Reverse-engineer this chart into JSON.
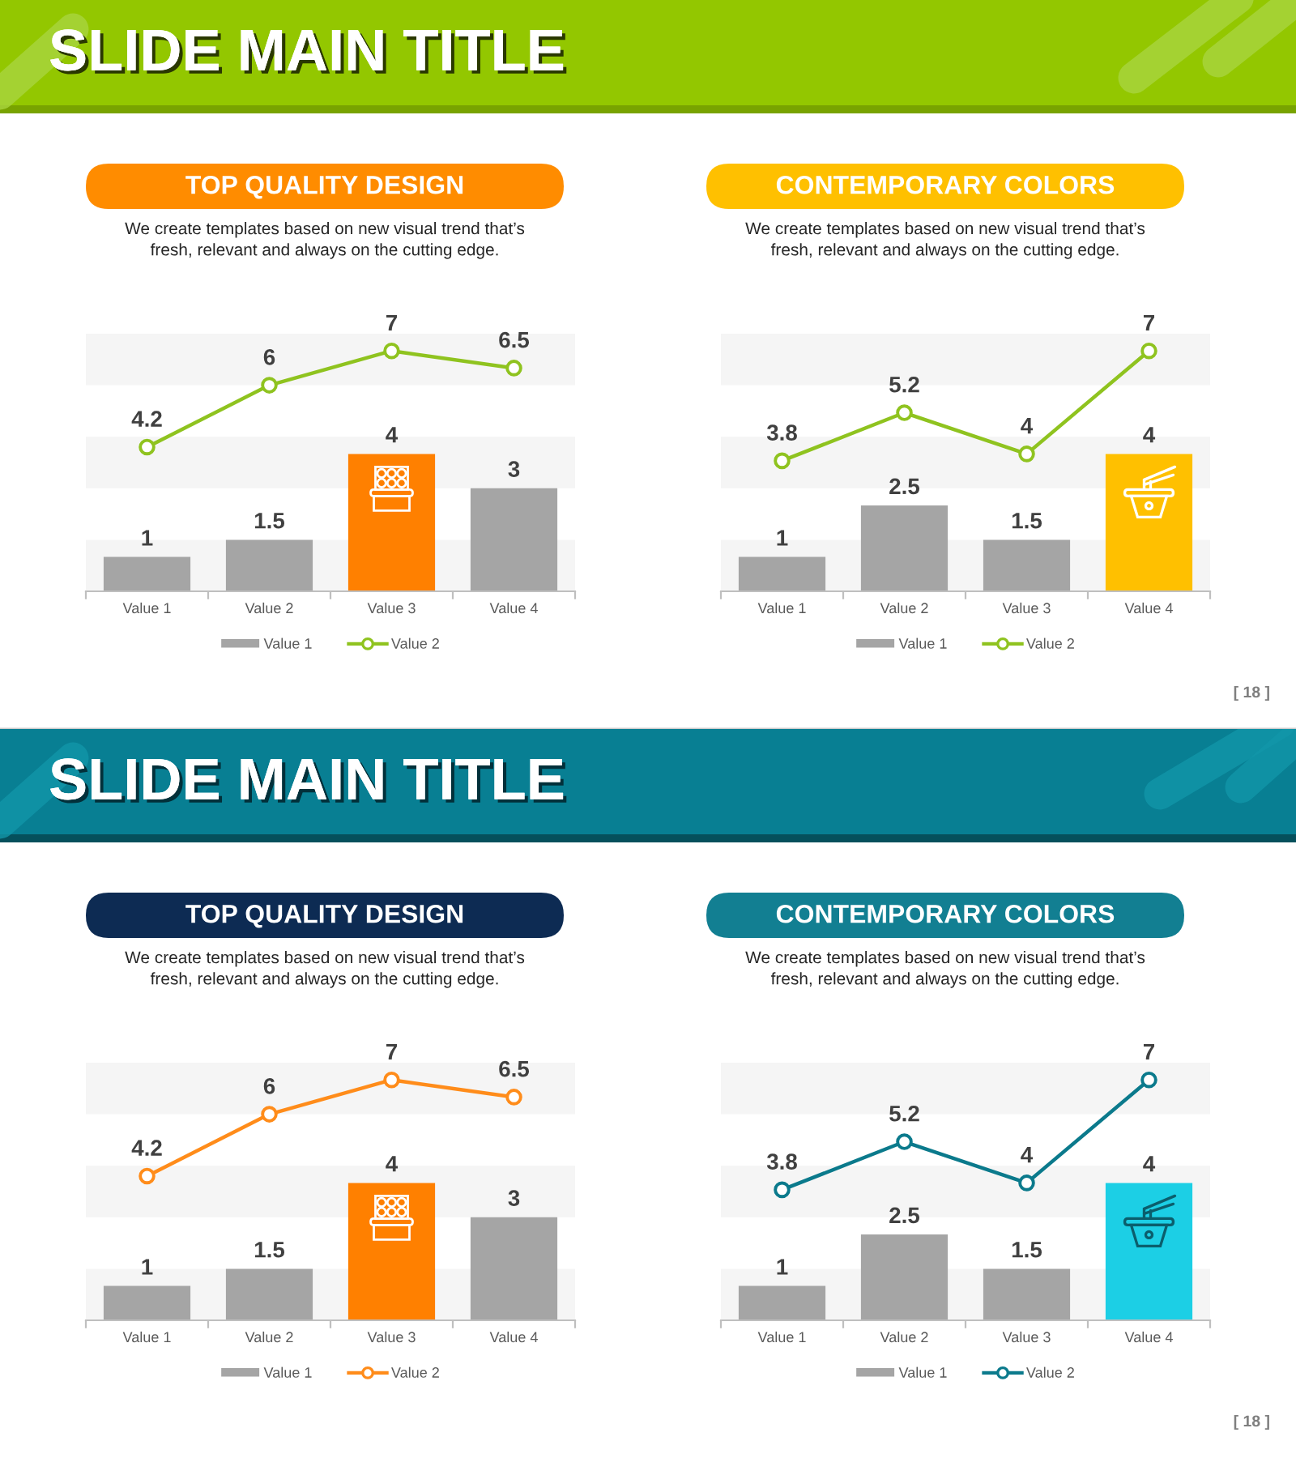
{
  "chart_data": [
    {
      "type": "other",
      "title": "SLIDE MAIN TITLE",
      "annotations": [
        "[ 18 ]"
      ]
    },
    {
      "type": "bar",
      "title": "TOP QUALITY DESIGN",
      "subtitle": "We create templates based on new visual trend that’s\nfresh, relevant and always on the cutting edge.",
      "categories": [
        "Value 1",
        "Value 2",
        "Value 3",
        "Value 4"
      ],
      "series": [
        {
          "name": "Value 1",
          "type": "bar",
          "color": "#a5a5a5",
          "colors": [
            "#a5a5a5",
            "#a5a5a5",
            "#ff8000",
            "#a5a5a5"
          ],
          "values": [
            1,
            1.5,
            4,
            3
          ]
        },
        {
          "name": "Value 2",
          "type": "line",
          "color": "#8fc31f",
          "marker": "circle",
          "values": [
            4.2,
            6,
            7,
            6.5
          ]
        }
      ],
      "ylim": [
        0,
        7.5
      ],
      "tick_labels": "x",
      "bands": [
        {
          "axis": "y",
          "from": 0,
          "to": 1.5,
          "color": "#f5f5f5"
        },
        {
          "axis": "y",
          "from": 3,
          "to": 4.5,
          "color": "#f5f5f5"
        },
        {
          "axis": "y",
          "from": 6,
          "to": 7.5,
          "color": "#f5f5f5"
        }
      ],
      "data_labels": true,
      "legend": "bottom"
    },
    {
      "type": "bar",
      "title": "CONTEMPORARY COLORS",
      "subtitle": "We create templates based on new visual trend that’s\nfresh, relevant and always on the cutting edge.",
      "categories": [
        "Value 1",
        "Value 2",
        "Value 3",
        "Value 4"
      ],
      "series": [
        {
          "name": "Value 1",
          "type": "bar",
          "color": "#a5a5a5",
          "colors": [
            "#a5a5a5",
            "#a5a5a5",
            "#a5a5a5",
            "#ffc000"
          ],
          "values": [
            1,
            2.5,
            1.5,
            4
          ]
        },
        {
          "name": "Value 2",
          "type": "line",
          "color": "#8fc31f",
          "marker": "circle",
          "values": [
            3.8,
            5.2,
            4,
            7
          ]
        }
      ],
      "ylim": [
        0,
        7.5
      ],
      "tick_labels": "x",
      "bands": [
        {
          "axis": "y",
          "from": 0,
          "to": 1.5,
          "color": "#f5f5f5"
        },
        {
          "axis": "y",
          "from": 3,
          "to": 4.5,
          "color": "#f5f5f5"
        },
        {
          "axis": "y",
          "from": 6,
          "to": 7.5,
          "color": "#f5f5f5"
        }
      ],
      "data_labels": true,
      "legend": "bottom"
    },
    {
      "type": "other",
      "title": "SLIDE MAIN TITLE",
      "annotations": [
        "[ 18 ]"
      ]
    },
    {
      "type": "bar",
      "title": "TOP QUALITY DESIGN",
      "subtitle": "We create templates based on new visual trend that’s\nfresh, relevant and always on the cutting edge.",
      "categories": [
        "Value 1",
        "Value 2",
        "Value 3",
        "Value 4"
      ],
      "series": [
        {
          "name": "Value 1",
          "type": "bar",
          "color": "#a5a5a5",
          "colors": [
            "#a5a5a5",
            "#a5a5a5",
            "#ff8000",
            "#a5a5a5"
          ],
          "values": [
            1,
            1.5,
            4,
            3
          ]
        },
        {
          "name": "Value 2",
          "type": "line",
          "color": "#ff8c1a",
          "marker": "circle",
          "values": [
            4.2,
            6,
            7,
            6.5
          ]
        }
      ],
      "ylim": [
        0,
        7.5
      ],
      "tick_labels": "x",
      "bands": [
        {
          "axis": "y",
          "from": 0,
          "to": 1.5,
          "color": "#f5f5f5"
        },
        {
          "axis": "y",
          "from": 3,
          "to": 4.5,
          "color": "#f5f5f5"
        },
        {
          "axis": "y",
          "from": 6,
          "to": 7.5,
          "color": "#f5f5f5"
        }
      ],
      "data_labels": true,
      "legend": "bottom"
    },
    {
      "type": "bar",
      "title": "CONTEMPORARY COLORS",
      "subtitle": "We create templates based on new visual trend that’s\nfresh, relevant and always on the cutting edge.",
      "categories": [
        "Value 1",
        "Value 2",
        "Value 3",
        "Value 4"
      ],
      "series": [
        {
          "name": "Value 1",
          "type": "bar",
          "color": "#a5a5a5",
          "colors": [
            "#a5a5a5",
            "#a5a5a5",
            "#a5a5a5",
            "#1ccfe5"
          ],
          "values": [
            1,
            2.5,
            1.5,
            4
          ]
        },
        {
          "name": "Value 2",
          "type": "line",
          "color": "#0b7a8c",
          "marker": "circle",
          "values": [
            3.8,
            5.2,
            4,
            7
          ]
        }
      ],
      "ylim": [
        0,
        7.5
      ],
      "tick_labels": "x",
      "bands": [
        {
          "axis": "y",
          "from": 0,
          "to": 1.5,
          "color": "#f5f5f5"
        },
        {
          "axis": "y",
          "from": 3,
          "to": 4.5,
          "color": "#f5f5f5"
        },
        {
          "axis": "y",
          "from": 6,
          "to": 7.5,
          "color": "#f5f5f5"
        }
      ],
      "data_labels": true,
      "legend": "bottom"
    }
  ]
}
